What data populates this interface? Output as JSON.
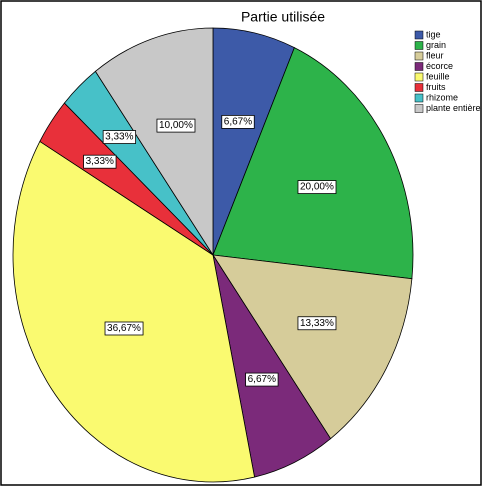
{
  "chart_data": {
    "type": "pie",
    "title": "Partie utilisée",
    "categories": [
      "tige",
      "grain",
      "fleur",
      "écorce",
      "feuille",
      "fruits",
      "rhizome",
      "plante entière"
    ],
    "values": [
      6.67,
      20.0,
      13.33,
      6.67,
      36.67,
      3.33,
      3.33,
      10.0
    ],
    "value_labels": [
      "6,67%",
      "20,00%",
      "13,33%",
      "6,67%",
      "36,67%",
      "3,33%",
      "3,33%",
      "10,00%"
    ],
    "colors": [
      "#3d5aa8",
      "#2db34a",
      "#d6cc9a",
      "#7b2a7a",
      "#fafa70",
      "#e8303a",
      "#47c1c8",
      "#c8c8c8"
    ],
    "legend": "top-right"
  }
}
